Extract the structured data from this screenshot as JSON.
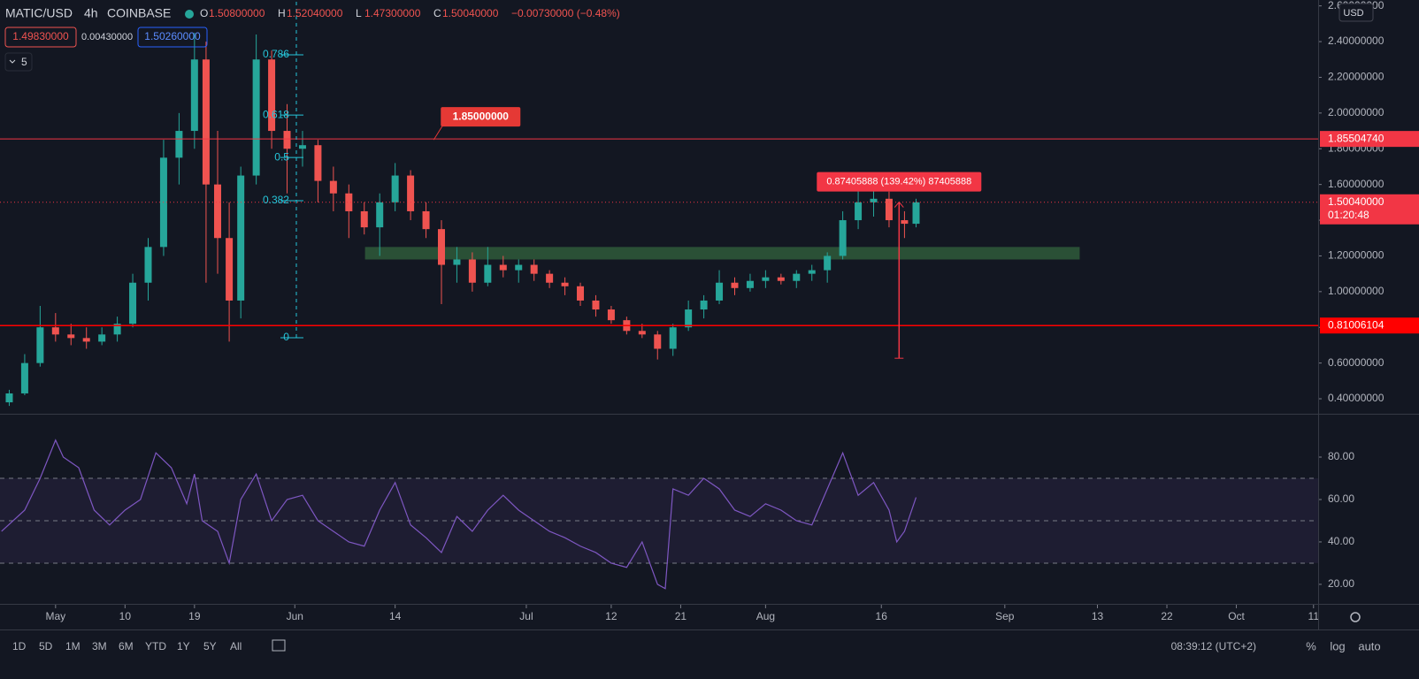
{
  "header": {
    "symbol": "MATIC/USD",
    "interval": "4h",
    "exchange": "COINBASE",
    "ohlc": [
      {
        "key": "O",
        "value": "1.50800000"
      },
      {
        "key": "H",
        "value": "1.52040000"
      },
      {
        "key": "L",
        "value": "1.47300000"
      },
      {
        "key": "C",
        "value": "1.50040000"
      }
    ],
    "change": "−0.00730000 (−0.48%)",
    "bid": "1.49830000",
    "spread": "0.00430000",
    "ask": "1.50260000",
    "indicator_count": "5"
  },
  "toolbar": {
    "ranges": [
      "1D",
      "5D",
      "1M",
      "3M",
      "6M",
      "YTD",
      "1Y",
      "5Y",
      "All"
    ],
    "clock": "08:39:12 (UTC+2)",
    "scale_buttons": [
      "%",
      "log",
      "auto"
    ],
    "currency": "USD"
  },
  "chart_data": [
    {
      "type": "candlestick",
      "up_color": "#26a69a",
      "down_color": "#ef5350",
      "x": [
        -6,
        -4,
        -2,
        0,
        2,
        4,
        6,
        8,
        10,
        12,
        14,
        16,
        18,
        19.5,
        21,
        22.5,
        24,
        26,
        28,
        30,
        32,
        34,
        36,
        38,
        40,
        42,
        44,
        46,
        48,
        50,
        52,
        54,
        56,
        58,
        60,
        62,
        64,
        66,
        68,
        70,
        72,
        74,
        76,
        78,
        80,
        82,
        84,
        86,
        88,
        90,
        92,
        94,
        96,
        98,
        100,
        102,
        104,
        106,
        108,
        110,
        111.5
      ],
      "open": [
        0.38,
        0.43,
        0.6,
        0.8,
        0.76,
        0.74,
        0.72,
        0.76,
        0.82,
        1.05,
        1.25,
        1.75,
        1.9,
        2.3,
        1.6,
        1.3,
        0.95,
        1.65,
        2.3,
        1.9,
        1.8,
        1.82,
        1.62,
        1.55,
        1.45,
        1.36,
        1.5,
        1.65,
        1.45,
        1.35,
        1.15,
        1.18,
        1.05,
        1.15,
        1.12,
        1.15,
        1.1,
        1.05,
        1.03,
        0.95,
        0.9,
        0.84,
        0.78,
        0.76,
        0.68,
        0.8,
        0.9,
        0.95,
        1.05,
        1.02,
        1.06,
        1.08,
        1.06,
        1.1,
        1.12,
        1.2,
        1.4,
        1.5,
        1.52,
        1.4,
        1.38
      ],
      "high": [
        0.45,
        0.65,
        0.92,
        0.88,
        0.82,
        0.8,
        0.8,
        0.86,
        1.1,
        1.3,
        1.85,
        2.0,
        2.45,
        2.4,
        1.9,
        1.5,
        1.7,
        2.44,
        2.35,
        2.05,
        1.9,
        1.85,
        1.7,
        1.6,
        1.5,
        1.55,
        1.72,
        1.68,
        1.5,
        1.4,
        1.25,
        1.22,
        1.25,
        1.2,
        1.18,
        1.18,
        1.12,
        1.08,
        1.05,
        0.98,
        0.92,
        0.86,
        0.82,
        0.78,
        0.82,
        0.95,
        0.98,
        1.12,
        1.08,
        1.1,
        1.12,
        1.1,
        1.12,
        1.15,
        1.22,
        1.45,
        1.58,
        1.58,
        1.56,
        1.45,
        1.52
      ],
      "low": [
        0.36,
        0.42,
        0.58,
        0.72,
        0.7,
        0.68,
        0.7,
        0.72,
        0.8,
        0.95,
        1.2,
        1.6,
        1.8,
        1.05,
        1.1,
        0.72,
        0.85,
        1.6,
        1.8,
        1.55,
        1.7,
        1.5,
        1.45,
        1.3,
        1.32,
        1.2,
        1.45,
        1.4,
        1.3,
        0.93,
        1.05,
        1.0,
        1.03,
        1.08,
        1.05,
        1.06,
        1.02,
        0.98,
        0.92,
        0.86,
        0.82,
        0.76,
        0.74,
        0.62,
        0.64,
        0.78,
        0.85,
        0.93,
        0.98,
        1.0,
        1.02,
        1.04,
        1.02,
        1.06,
        1.05,
        1.18,
        1.35,
        1.42,
        1.36,
        1.3,
        1.36
      ],
      "close": [
        0.43,
        0.6,
        0.8,
        0.76,
        0.74,
        0.72,
        0.76,
        0.82,
        1.05,
        1.25,
        1.75,
        1.9,
        2.3,
        1.6,
        1.3,
        0.95,
        1.65,
        2.3,
        1.9,
        1.8,
        1.82,
        1.62,
        1.55,
        1.45,
        1.36,
        1.5,
        1.65,
        1.45,
        1.35,
        1.15,
        1.18,
        1.05,
        1.15,
        1.12,
        1.15,
        1.1,
        1.05,
        1.03,
        0.95,
        0.9,
        0.84,
        0.78,
        0.76,
        0.68,
        0.8,
        0.9,
        0.95,
        1.05,
        1.02,
        1.06,
        1.08,
        1.06,
        1.1,
        1.12,
        1.2,
        1.4,
        1.5,
        1.52,
        1.4,
        1.38,
        1.5
      ],
      "xlim": [
        -7.2,
        163.6
      ],
      "xticks": [
        {
          "value": 0,
          "label": "May"
        },
        {
          "value": 9,
          "label": "10"
        },
        {
          "value": 18,
          "label": "19"
        },
        {
          "value": 31,
          "label": "Jun"
        },
        {
          "value": 44,
          "label": "14"
        },
        {
          "value": 61,
          "label": "Jul"
        },
        {
          "value": 72,
          "label": "12"
        },
        {
          "value": 81,
          "label": "21"
        },
        {
          "value": 92,
          "label": "Aug"
        },
        {
          "value": 107,
          "label": "16"
        },
        {
          "value": 123,
          "label": "Sep"
        },
        {
          "value": 135,
          "label": "13"
        },
        {
          "value": 144,
          "label": "22"
        },
        {
          "value": 153,
          "label": "Oct"
        },
        {
          "value": 163,
          "label": "11"
        }
      ],
      "ylim": [
        0.316,
        2.633
      ],
      "yticks": [
        {
          "value": 0.4,
          "label": "0.40000000"
        },
        {
          "value": 0.6,
          "label": "0.60000000"
        },
        {
          "value": 0.8,
          "label": "0.80000000"
        },
        {
          "value": 1,
          "label": "1.00000000"
        },
        {
          "value": 1.2,
          "label": "1.20000000"
        },
        {
          "value": 1.4,
          "label": "1.40000000"
        },
        {
          "value": 1.6,
          "label": "1.60000000"
        },
        {
          "value": 1.8,
          "label": "1.80000000"
        },
        {
          "value": 2,
          "label": "2.00000000"
        },
        {
          "value": 2.2,
          "label": "2.20000000"
        },
        {
          "value": 2.4,
          "label": "2.40000000"
        },
        {
          "value": 2.6,
          "label": "2.60000000"
        }
      ],
      "grid": false,
      "hlines": [
        {
          "value": 1.8550474,
          "label": "1.85504740",
          "color": "#f23645"
        },
        {
          "value": 0.81006104,
          "label": "0.81006104",
          "color": "#ff0000"
        }
      ],
      "last_price": {
        "value": 1.5004,
        "label": "1.50040000",
        "countdown": "01:20:48",
        "color": "#f23645"
      },
      "callout": {
        "value": 1.85,
        "label": "1.85000000",
        "x": 49,
        "color": "#e53935"
      },
      "fib": {
        "x": 31.2,
        "color": "#26c6da",
        "levels": [
          0,
          0.382,
          0.5,
          0.618,
          0.786
        ],
        "prices": [
          0.742,
          1.509,
          1.751,
          1.989,
          2.326
        ]
      },
      "zone": {
        "x": [
          40.1,
          132.7
        ],
        "y": [
          1.18,
          1.25
        ],
        "color": "#2f5a3a"
      },
      "measure": {
        "x": 109.3,
        "from": 0.627,
        "to": 1.5013,
        "label": "0.87405888 (139.42%) 87405888",
        "color": "#f23645"
      }
    },
    {
      "type": "line",
      "color": "#7e57c2",
      "x": [
        -7,
        -4,
        -2,
        0,
        1,
        3,
        5,
        7,
        9,
        11,
        13,
        15,
        17,
        18,
        19,
        21,
        22.5,
        24,
        26,
        28,
        30,
        32,
        34,
        36,
        38,
        40,
        42,
        44,
        46,
        48,
        50,
        52,
        54,
        56,
        58,
        60,
        62,
        64,
        66,
        68,
        70,
        72,
        74,
        76,
        78,
        79,
        80,
        82,
        84,
        86,
        88,
        90,
        92,
        94,
        96,
        98,
        100,
        102,
        104,
        106,
        108,
        109,
        110,
        111.5
      ],
      "values": [
        45,
        55,
        70,
        88,
        80,
        75,
        55,
        48,
        55,
        60,
        82,
        75,
        58,
        72,
        50,
        45,
        30,
        60,
        72,
        50,
        60,
        62,
        50,
        45,
        40,
        38,
        55,
        68,
        48,
        42,
        35,
        52,
        45,
        55,
        62,
        55,
        50,
        45,
        42,
        38,
        35,
        30,
        28,
        40,
        20,
        18,
        65,
        62,
        70,
        65,
        55,
        52,
        58,
        55,
        50,
        48,
        65,
        82,
        62,
        68,
        55,
        40,
        45,
        61
      ],
      "ylim": [
        10.8,
        99.6
      ],
      "yticks": [
        {
          "value": 20,
          "label": "20.00"
        },
        {
          "value": 40,
          "label": "40.00"
        },
        {
          "value": 60,
          "label": "60.00"
        },
        {
          "value": 80,
          "label": "80.00"
        }
      ],
      "band": [
        30,
        70
      ],
      "midline": 50
    }
  ]
}
